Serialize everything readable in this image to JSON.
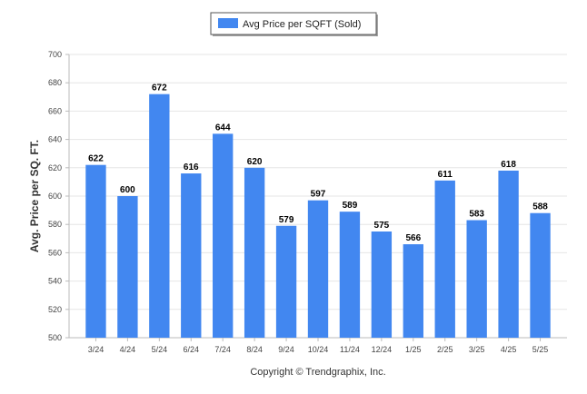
{
  "chart_data": {
    "type": "bar",
    "categories": [
      "3/24",
      "4/24",
      "5/24",
      "6/24",
      "7/24",
      "8/24",
      "9/24",
      "10/24",
      "11/24",
      "12/24",
      "1/25",
      "2/25",
      "3/25",
      "4/25",
      "5/25"
    ],
    "series": [
      {
        "name": "Avg Price per SQFT (Sold)",
        "values": [
          622,
          600,
          672,
          616,
          644,
          620,
          579,
          597,
          589,
          575,
          566,
          611,
          583,
          618,
          588
        ],
        "color": "#4287f0"
      }
    ],
    "ylabel": "Avg. Price per SQ. FT.",
    "xlabel": "",
    "ylim": [
      500,
      700
    ],
    "yticks": [
      500,
      520,
      540,
      560,
      580,
      600,
      620,
      640,
      660,
      680,
      700
    ],
    "grid": true,
    "legend_position": "top-center",
    "data_labels": true
  },
  "footer": {
    "copyright": "Copyright © Trendgraphix, Inc."
  }
}
